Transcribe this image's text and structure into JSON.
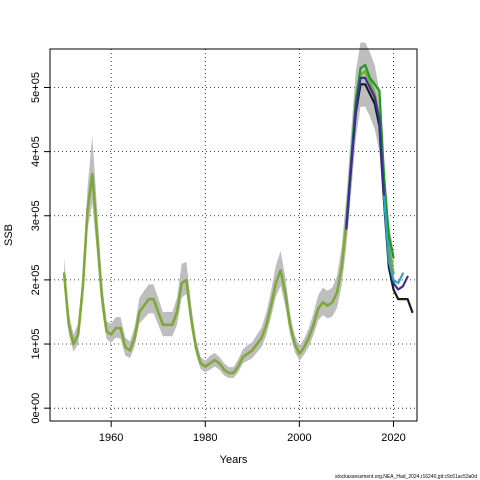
{
  "chart_data": {
    "type": "line",
    "title": "",
    "xlabel": "Years",
    "ylabel": "SSB",
    "xlim": [
      1947,
      2025
    ],
    "ylim": [
      -20000,
      560000
    ],
    "xticks": [
      1960,
      1980,
      2000,
      2020
    ],
    "xtick_labels": [
      "1960",
      "1980",
      "2000",
      "2020"
    ],
    "yticks": [
      0,
      100000,
      200000,
      300000,
      400000,
      500000
    ],
    "ytick_labels": [
      "0e+00",
      "1e+05",
      "2e+05",
      "3e+05",
      "4e+05",
      "5e+05"
    ],
    "grid": true,
    "band_color": "#bebebe",
    "series": [
      {
        "color": "#7fa83a",
        "x": [
          1950,
          1951,
          1952,
          1953,
          1954,
          1955,
          1956,
          1957,
          1958,
          1959,
          1960,
          1961,
          1962,
          1963,
          1964,
          1965,
          1966,
          1967,
          1968,
          1969,
          1970,
          1971,
          1972,
          1973,
          1974,
          1975,
          1976,
          1977,
          1978,
          1979,
          1980,
          1981,
          1982,
          1983,
          1984,
          1985,
          1986,
          1987,
          1988,
          1989,
          1990,
          1991,
          1992,
          1993,
          1994,
          1995,
          1996,
          1997,
          1998,
          1999,
          2000,
          2001,
          2002,
          2003,
          2004,
          2005,
          2006,
          2007,
          2008,
          2009,
          2010,
          2011,
          2012,
          2013,
          2014,
          2015,
          2016,
          2017,
          2018,
          2019,
          2020
        ],
        "y": [
          210000,
          130000,
          100000,
          115000,
          190000,
          310000,
          365000,
          270000,
          175000,
          120000,
          115000,
          125000,
          125000,
          95000,
          90000,
          110000,
          150000,
          160000,
          170000,
          170000,
          150000,
          130000,
          130000,
          130000,
          150000,
          195000,
          200000,
          140000,
          95000,
          70000,
          65000,
          70000,
          75000,
          70000,
          60000,
          55000,
          55000,
          65000,
          80000,
          85000,
          90000,
          100000,
          110000,
          130000,
          160000,
          195000,
          215000,
          180000,
          130000,
          100000,
          85000,
          95000,
          110000,
          130000,
          155000,
          165000,
          160000,
          165000,
          180000,
          220000,
          290000,
          380000,
          470000,
          520000,
          525000,
          510000,
          490000,
          450000,
          340000,
          250000,
          210000
        ],
        "lower": [
          190000,
          115000,
          88000,
          100000,
          170000,
          280000,
          320000,
          240000,
          155000,
          108000,
          102000,
          110000,
          108000,
          82000,
          78000,
          96000,
          132000,
          140000,
          148000,
          148000,
          130000,
          112000,
          112000,
          112000,
          130000,
          172000,
          178000,
          124000,
          84000,
          61000,
          56000,
          60000,
          65000,
          60000,
          51000,
          47000,
          47000,
          56000,
          70000,
          74000,
          78000,
          87000,
          96000,
          114000,
          142000,
          173000,
          191000,
          159000,
          115000,
          88000,
          74000,
          83000,
          96000,
          114000,
          137000,
          145000,
          140000,
          143000,
          156000,
          191000,
          253000,
          335000,
          420000,
          470000,
          470000,
          455000,
          435000,
          400000,
          300000,
          215000,
          180000
        ],
        "upper": [
          235000,
          148000,
          115000,
          132000,
          215000,
          345000,
          425000,
          310000,
          200000,
          135000,
          132000,
          142000,
          142000,
          110000,
          104000,
          127000,
          172000,
          183000,
          193000,
          193000,
          172000,
          150000,
          150000,
          150000,
          172000,
          225000,
          228000,
          160000,
          108000,
          80000,
          74000,
          82000,
          86000,
          80000,
          70000,
          64000,
          64000,
          76000,
          92000,
          98000,
          103000,
          115000,
          126000,
          150000,
          183000,
          222000,
          245000,
          205000,
          148000,
          114000,
          97000,
          108000,
          125000,
          148000,
          176000,
          188000,
          183000,
          188000,
          206000,
          252000,
          330000,
          430000,
          525000,
          570000,
          570000,
          555000,
          535000,
          495000,
          385000,
          290000,
          245000
        ]
      },
      {
        "color": "#1b9e1b",
        "x": [
          2010,
          2011,
          2012,
          2013,
          2014,
          2015,
          2016,
          2017,
          2018,
          2019,
          2020
        ],
        "y": [
          285000,
          385000,
          480000,
          530000,
          535000,
          515000,
          505000,
          495000,
          360000,
          270000,
          235000
        ]
      },
      {
        "color": "#1a1a1a",
        "x": [
          2010,
          2011,
          2012,
          2013,
          2014,
          2015,
          2016,
          2017,
          2018,
          2019,
          2020,
          2021,
          2022,
          2023,
          2024
        ],
        "y": [
          280000,
          375000,
          460000,
          505000,
          505000,
          490000,
          475000,
          440000,
          320000,
          220000,
          185000,
          170000,
          170000,
          170000,
          150000
        ]
      },
      {
        "color": "#3a2fa0",
        "x": [
          2010,
          2011,
          2012,
          2013,
          2014,
          2015,
          2016,
          2017,
          2018,
          2019,
          2020,
          2021,
          2022,
          2023
        ],
        "y": [
          280000,
          378000,
          465000,
          515000,
          515000,
          500000,
          485000,
          450000,
          330000,
          230000,
          195000,
          185000,
          190000,
          205000
        ]
      },
      {
        "color": "#2aa8c8",
        "x": [
          2018,
          2019,
          2020,
          2021,
          2022
        ],
        "y": [
          330000,
          230000,
          200000,
          195000,
          210000
        ]
      }
    ],
    "footer": "stockassessment.org,NEA_Had_2024,r16240,git:c9c61ac53a0d"
  }
}
